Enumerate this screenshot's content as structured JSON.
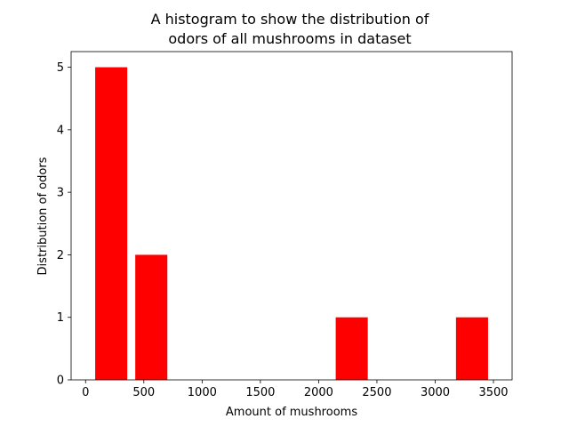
{
  "chart_data": {
    "type": "bar",
    "title_lines": [
      "A histogram to show the distribution of",
      "odors of all mushrooms in dataset"
    ],
    "xlabel": "Amount of mushrooms",
    "ylabel": "Distribution of odors",
    "bar_color": "#ff0000",
    "bins": [
      {
        "x0": 48,
        "x1": 392,
        "value": 5
      },
      {
        "x0": 392,
        "x1": 736,
        "value": 2
      },
      {
        "x0": 736,
        "x1": 1080,
        "value": 0
      },
      {
        "x0": 1080,
        "x1": 1424,
        "value": 0
      },
      {
        "x0": 1424,
        "x1": 1768,
        "value": 0
      },
      {
        "x0": 1768,
        "x1": 2112,
        "value": 0
      },
      {
        "x0": 2112,
        "x1": 2456,
        "value": 1
      },
      {
        "x0": 2456,
        "x1": 2800,
        "value": 0
      },
      {
        "x0": 2800,
        "x1": 3144,
        "value": 0
      },
      {
        "x0": 3144,
        "x1": 3488,
        "value": 1
      }
    ],
    "bar_width_fraction": 0.8,
    "xlim": [
      -124,
      3660
    ],
    "ylim": [
      0,
      5.25
    ],
    "xticks": [
      0,
      500,
      1000,
      1500,
      2000,
      2500,
      3000,
      3500
    ],
    "yticks": [
      0,
      1,
      2,
      3,
      4,
      5
    ],
    "grid": false,
    "legend": "none"
  }
}
